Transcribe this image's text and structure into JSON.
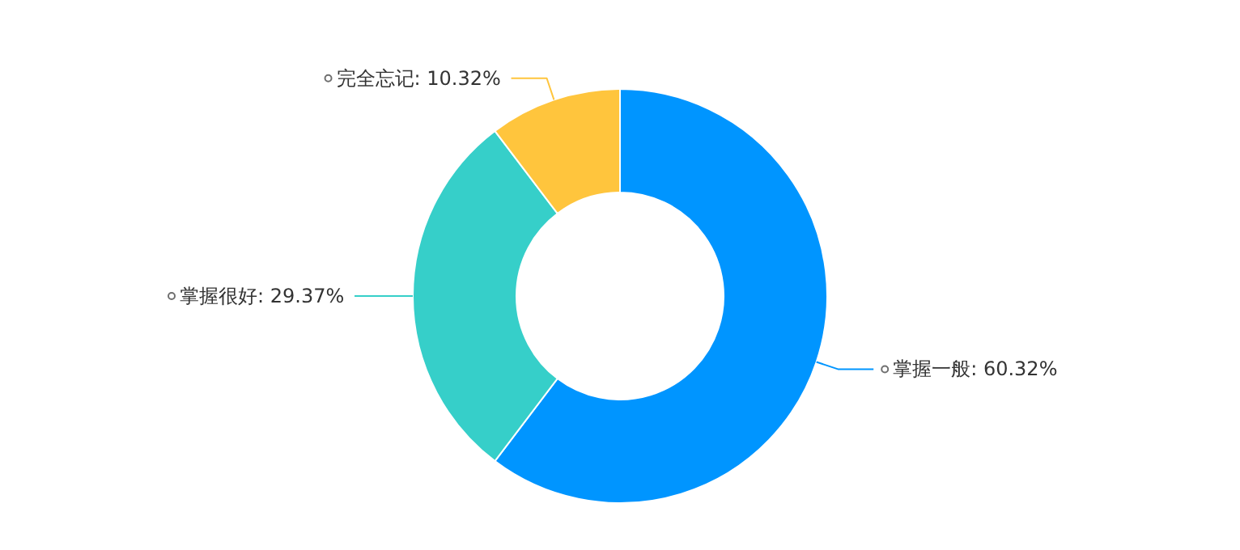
{
  "chart_data": {
    "type": "donut",
    "categories": [
      "掌握一般",
      "掌握很好",
      "完全忘记"
    ],
    "values": [
      60.32,
      29.37,
      10.32
    ],
    "colors": [
      "#0095ff",
      "#36cfc9",
      "#ffc53d"
    ],
    "value_labels": [
      "60.32%",
      "29.37%",
      "10.32%"
    ]
  }
}
